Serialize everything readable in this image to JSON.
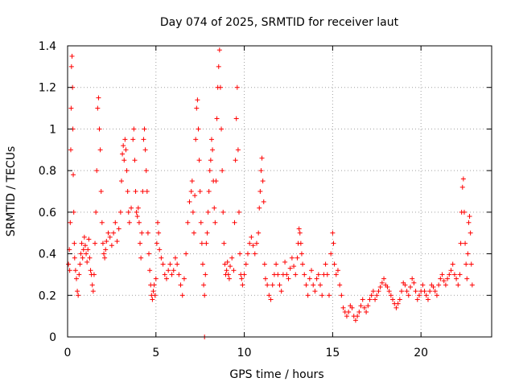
{
  "chart_data": {
    "type": "scatter",
    "title": "Day 074 of 2025, SRMTID for receiver laut",
    "xlabel": "GPS time / hours",
    "ylabel": "SRMTID / TECUs",
    "xlim": [
      0,
      24
    ],
    "ylim": [
      0,
      1.4
    ],
    "x_ticks": [
      0,
      5,
      10,
      15,
      20
    ],
    "x_tick_labels": [
      "0",
      "5",
      "10",
      "15",
      "20"
    ],
    "y_ticks": [
      0,
      0.2,
      0.4,
      0.6,
      0.8,
      1.0,
      1.2,
      1.4
    ],
    "y_tick_labels": [
      "0",
      "0.2",
      "0.4",
      "0.6",
      "0.8",
      "1",
      "1.2",
      "1.4"
    ],
    "grid": true,
    "marker": "plus",
    "series": [
      {
        "name": "SRMTID",
        "color": "#ff0000",
        "points": [
          [
            0.05,
            0.35
          ],
          [
            0.1,
            0.42
          ],
          [
            0.12,
            0.32
          ],
          [
            0.15,
            0.55
          ],
          [
            0.18,
            0.9
          ],
          [
            0.2,
            1.1
          ],
          [
            0.22,
            1.3
          ],
          [
            0.25,
            1.35
          ],
          [
            0.28,
            1.2
          ],
          [
            0.3,
            1.0
          ],
          [
            0.32,
            0.78
          ],
          [
            0.35,
            0.6
          ],
          [
            0.38,
            0.45
          ],
          [
            0.4,
            0.38
          ],
          [
            0.45,
            0.32
          ],
          [
            0.5,
            0.28
          ],
          [
            0.55,
            0.22
          ],
          [
            0.6,
            0.2
          ],
          [
            0.65,
            0.3
          ],
          [
            0.7,
            0.35
          ],
          [
            0.75,
            0.4
          ],
          [
            0.8,
            0.45
          ],
          [
            0.85,
            0.38
          ],
          [
            0.9,
            0.42
          ],
          [
            0.95,
            0.48
          ],
          [
            1.0,
            0.44
          ],
          [
            1.05,
            0.4
          ],
          [
            1.1,
            0.36
          ],
          [
            1.15,
            0.42
          ],
          [
            1.2,
            0.47
          ],
          [
            1.25,
            0.38
          ],
          [
            1.3,
            0.32
          ],
          [
            1.35,
            0.3
          ],
          [
            1.4,
            0.25
          ],
          [
            1.45,
            0.22
          ],
          [
            1.5,
            0.3
          ],
          [
            1.55,
            0.45
          ],
          [
            1.6,
            0.6
          ],
          [
            1.65,
            0.8
          ],
          [
            1.7,
            1.1
          ],
          [
            1.75,
            1.15
          ],
          [
            1.8,
            1.0
          ],
          [
            1.85,
            0.9
          ],
          [
            1.9,
            0.7
          ],
          [
            1.95,
            0.55
          ],
          [
            2.0,
            0.45
          ],
          [
            2.05,
            0.4
          ],
          [
            2.1,
            0.38
          ],
          [
            2.15,
            0.42
          ],
          [
            2.2,
            0.46
          ],
          [
            2.3,
            0.5
          ],
          [
            2.4,
            0.48
          ],
          [
            2.5,
            0.44
          ],
          [
            2.6,
            0.5
          ],
          [
            2.7,
            0.55
          ],
          [
            2.8,
            0.46
          ],
          [
            2.9,
            0.52
          ],
          [
            3.0,
            0.6
          ],
          [
            3.05,
            0.75
          ],
          [
            3.1,
            0.88
          ],
          [
            3.15,
            0.92
          ],
          [
            3.2,
            0.85
          ],
          [
            3.25,
            0.95
          ],
          [
            3.3,
            0.9
          ],
          [
            3.35,
            0.8
          ],
          [
            3.4,
            0.7
          ],
          [
            3.45,
            0.6
          ],
          [
            3.5,
            0.55
          ],
          [
            3.6,
            0.62
          ],
          [
            3.7,
            0.95
          ],
          [
            3.75,
            1.0
          ],
          [
            3.8,
            0.85
          ],
          [
            3.85,
            0.7
          ],
          [
            3.9,
            0.6
          ],
          [
            3.95,
            0.58
          ],
          [
            4.0,
            0.62
          ],
          [
            4.05,
            0.55
          ],
          [
            4.1,
            0.45
          ],
          [
            4.15,
            0.38
          ],
          [
            4.2,
            0.5
          ],
          [
            4.25,
            0.7
          ],
          [
            4.3,
            0.95
          ],
          [
            4.35,
            1.0
          ],
          [
            4.4,
            0.9
          ],
          [
            4.45,
            0.8
          ],
          [
            4.5,
            0.7
          ],
          [
            4.55,
            0.5
          ],
          [
            4.6,
            0.4
          ],
          [
            4.65,
            0.32
          ],
          [
            4.7,
            0.25
          ],
          [
            4.75,
            0.2
          ],
          [
            4.8,
            0.18
          ],
          [
            4.85,
            0.22
          ],
          [
            4.9,
            0.25
          ],
          [
            4.95,
            0.2
          ],
          [
            5.0,
            0.28
          ],
          [
            5.05,
            0.45
          ],
          [
            5.1,
            0.55
          ],
          [
            5.15,
            0.5
          ],
          [
            5.2,
            0.42
          ],
          [
            5.3,
            0.38
          ],
          [
            5.4,
            0.35
          ],
          [
            5.5,
            0.3
          ],
          [
            5.6,
            0.28
          ],
          [
            5.7,
            0.32
          ],
          [
            5.8,
            0.35
          ],
          [
            5.9,
            0.3
          ],
          [
            6.0,
            0.32
          ],
          [
            6.1,
            0.38
          ],
          [
            6.2,
            0.35
          ],
          [
            6.3,
            0.3
          ],
          [
            6.4,
            0.25
          ],
          [
            6.5,
            0.2
          ],
          [
            6.6,
            0.28
          ],
          [
            6.7,
            0.4
          ],
          [
            6.8,
            0.55
          ],
          [
            6.9,
            0.65
          ],
          [
            7.0,
            0.7
          ],
          [
            7.05,
            0.75
          ],
          [
            7.1,
            0.6
          ],
          [
            7.15,
            0.5
          ],
          [
            7.2,
            0.68
          ],
          [
            7.25,
            0.95
          ],
          [
            7.3,
            1.1
          ],
          [
            7.35,
            1.14
          ],
          [
            7.4,
            1.0
          ],
          [
            7.45,
            0.85
          ],
          [
            7.5,
            0.7
          ],
          [
            7.55,
            0.55
          ],
          [
            7.6,
            0.45
          ],
          [
            7.65,
            0.35
          ],
          [
            7.7,
            0.25
          ],
          [
            7.75,
            0.2
          ],
          [
            7.8,
            0.3
          ],
          [
            7.85,
            0.45
          ],
          [
            7.9,
            0.5
          ],
          [
            7.95,
            0.6
          ],
          [
            8.0,
            0.7
          ],
          [
            8.05,
            0.8
          ],
          [
            8.1,
            0.85
          ],
          [
            8.15,
            0.95
          ],
          [
            8.2,
            0.9
          ],
          [
            8.25,
            0.75
          ],
          [
            8.3,
            0.62
          ],
          [
            8.35,
            0.55
          ],
          [
            8.4,
            0.75
          ],
          [
            8.45,
            1.05
          ],
          [
            8.5,
            1.2
          ],
          [
            8.55,
            1.3
          ],
          [
            8.6,
            1.38
          ],
          [
            8.65,
            1.2
          ],
          [
            8.7,
            1.0
          ],
          [
            8.75,
            0.8
          ],
          [
            8.8,
            0.6
          ],
          [
            8.85,
            0.45
          ],
          [
            8.9,
            0.35
          ],
          [
            8.95,
            0.3
          ],
          [
            9.0,
            0.32
          ],
          [
            9.05,
            0.36
          ],
          [
            9.1,
            0.3
          ],
          [
            9.15,
            0.28
          ],
          [
            9.2,
            0.34
          ],
          [
            9.3,
            0.38
          ],
          [
            9.4,
            0.32
          ],
          [
            9.45,
            0.55
          ],
          [
            9.5,
            0.85
          ],
          [
            9.55,
            1.05
          ],
          [
            9.6,
            1.2
          ],
          [
            9.65,
            0.9
          ],
          [
            9.7,
            0.6
          ],
          [
            9.75,
            0.4
          ],
          [
            9.8,
            0.3
          ],
          [
            9.85,
            0.28
          ],
          [
            9.9,
            0.25
          ],
          [
            10.0,
            0.3
          ],
          [
            10.1,
            0.35
          ],
          [
            10.2,
            0.4
          ],
          [
            10.3,
            0.45
          ],
          [
            10.4,
            0.48
          ],
          [
            10.5,
            0.44
          ],
          [
            10.6,
            0.4
          ],
          [
            10.7,
            0.45
          ],
          [
            10.8,
            0.5
          ],
          [
            10.85,
            0.62
          ],
          [
            10.9,
            0.7
          ],
          [
            10.95,
            0.8
          ],
          [
            11.0,
            0.86
          ],
          [
            11.05,
            0.75
          ],
          [
            11.1,
            0.65
          ],
          [
            11.15,
            0.35
          ],
          [
            11.2,
            0.28
          ],
          [
            11.3,
            0.25
          ],
          [
            11.4,
            0.2
          ],
          [
            11.5,
            0.18
          ],
          [
            11.6,
            0.25
          ],
          [
            11.7,
            0.3
          ],
          [
            11.8,
            0.35
          ],
          [
            11.9,
            0.3
          ],
          [
            12.0,
            0.25
          ],
          [
            12.1,
            0.22
          ],
          [
            12.2,
            0.3
          ],
          [
            12.3,
            0.36
          ],
          [
            12.4,
            0.3
          ],
          [
            12.5,
            0.28
          ],
          [
            12.6,
            0.33
          ],
          [
            12.7,
            0.38
          ],
          [
            12.8,
            0.34
          ],
          [
            12.9,
            0.3
          ],
          [
            13.0,
            0.38
          ],
          [
            13.05,
            0.45
          ],
          [
            13.1,
            0.52
          ],
          [
            13.15,
            0.5
          ],
          [
            13.2,
            0.45
          ],
          [
            13.25,
            0.4
          ],
          [
            13.3,
            0.35
          ],
          [
            13.4,
            0.3
          ],
          [
            13.5,
            0.25
          ],
          [
            13.6,
            0.2
          ],
          [
            13.7,
            0.28
          ],
          [
            13.8,
            0.32
          ],
          [
            13.9,
            0.25
          ],
          [
            14.0,
            0.22
          ],
          [
            14.1,
            0.28
          ],
          [
            14.2,
            0.3
          ],
          [
            14.3,
            0.25
          ],
          [
            14.4,
            0.2
          ],
          [
            14.5,
            0.3
          ],
          [
            14.6,
            0.35
          ],
          [
            14.7,
            0.3
          ],
          [
            14.8,
            0.2
          ],
          [
            14.9,
            0.4
          ],
          [
            15.0,
            0.5
          ],
          [
            15.05,
            0.45
          ],
          [
            15.1,
            0.35
          ],
          [
            15.2,
            0.3
          ],
          [
            15.3,
            0.32
          ],
          [
            15.4,
            0.25
          ],
          [
            15.5,
            0.2
          ],
          [
            15.6,
            0.14
          ],
          [
            15.7,
            0.12
          ],
          [
            15.8,
            0.1
          ],
          [
            15.9,
            0.12
          ],
          [
            16.0,
            0.15
          ],
          [
            16.1,
            0.14
          ],
          [
            16.2,
            0.1
          ],
          [
            16.3,
            0.08
          ],
          [
            16.4,
            0.1
          ],
          [
            16.5,
            0.12
          ],
          [
            16.6,
            0.15
          ],
          [
            16.7,
            0.18
          ],
          [
            16.8,
            0.14
          ],
          [
            16.9,
            0.12
          ],
          [
            17.0,
            0.15
          ],
          [
            17.1,
            0.18
          ],
          [
            17.2,
            0.2
          ],
          [
            17.3,
            0.22
          ],
          [
            17.4,
            0.18
          ],
          [
            17.5,
            0.2
          ],
          [
            17.6,
            0.22
          ],
          [
            17.7,
            0.24
          ],
          [
            17.8,
            0.26
          ],
          [
            17.9,
            0.28
          ],
          [
            18.0,
            0.25
          ],
          [
            18.1,
            0.24
          ],
          [
            18.2,
            0.22
          ],
          [
            18.3,
            0.2
          ],
          [
            18.4,
            0.18
          ],
          [
            18.5,
            0.16
          ],
          [
            18.6,
            0.14
          ],
          [
            18.7,
            0.16
          ],
          [
            18.8,
            0.18
          ],
          [
            18.9,
            0.22
          ],
          [
            19.0,
            0.26
          ],
          [
            19.1,
            0.25
          ],
          [
            19.2,
            0.22
          ],
          [
            19.3,
            0.2
          ],
          [
            19.4,
            0.24
          ],
          [
            19.5,
            0.28
          ],
          [
            19.6,
            0.26
          ],
          [
            19.7,
            0.22
          ],
          [
            19.8,
            0.18
          ],
          [
            19.9,
            0.2
          ],
          [
            20.0,
            0.22
          ],
          [
            20.1,
            0.25
          ],
          [
            20.2,
            0.22
          ],
          [
            20.3,
            0.2
          ],
          [
            20.4,
            0.18
          ],
          [
            20.5,
            0.22
          ],
          [
            20.6,
            0.25
          ],
          [
            20.7,
            0.24
          ],
          [
            20.8,
            0.22
          ],
          [
            20.9,
            0.2
          ],
          [
            21.0,
            0.25
          ],
          [
            21.1,
            0.28
          ],
          [
            21.2,
            0.3
          ],
          [
            21.3,
            0.27
          ],
          [
            21.4,
            0.25
          ],
          [
            21.5,
            0.28
          ],
          [
            21.6,
            0.3
          ],
          [
            21.7,
            0.32
          ],
          [
            21.8,
            0.35
          ],
          [
            21.9,
            0.3
          ],
          [
            22.0,
            0.28
          ],
          [
            22.1,
            0.25
          ],
          [
            22.2,
            0.3
          ],
          [
            22.25,
            0.45
          ],
          [
            22.3,
            0.6
          ],
          [
            22.35,
            0.72
          ],
          [
            22.4,
            0.76
          ],
          [
            22.45,
            0.6
          ],
          [
            22.5,
            0.45
          ],
          [
            22.55,
            0.35
          ],
          [
            22.6,
            0.28
          ],
          [
            22.65,
            0.4
          ],
          [
            22.7,
            0.55
          ],
          [
            22.75,
            0.58
          ],
          [
            22.8,
            0.5
          ],
          [
            22.85,
            0.35
          ],
          [
            22.9,
            0.25
          ],
          [
            7.75,
            0.0
          ]
        ]
      }
    ]
  }
}
